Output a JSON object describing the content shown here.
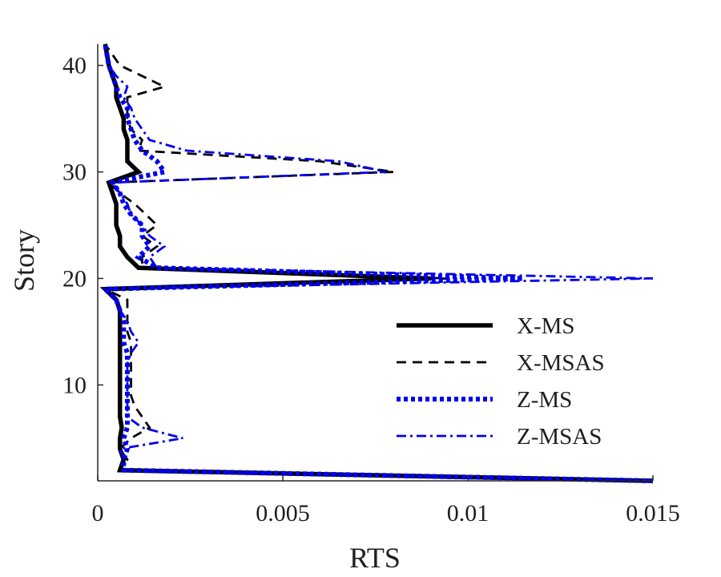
{
  "chart_data": {
    "type": "line",
    "xlabel": "RTS",
    "ylabel": "Story",
    "xlim": [
      0,
      0.015
    ],
    "ylim": [
      1,
      42
    ],
    "xticks": [
      0,
      0.005,
      0.01,
      0.015
    ],
    "xtick_labels": [
      "0",
      "0.005",
      "0.01",
      "0.015"
    ],
    "yticks": [
      10,
      20,
      30,
      40
    ],
    "ytick_labels": [
      "10",
      "20",
      "30",
      "40"
    ],
    "grid": false,
    "legend_position": "bottom-right",
    "series": [
      {
        "name": "X-MS",
        "color": "#000000",
        "style": "solid",
        "x": [
          0.015,
          0.0006,
          0.0007,
          0.0006,
          0.0006,
          0.00065,
          0.0006,
          0.0006,
          0.0006,
          0.0006,
          0.0006,
          0.0006,
          0.0006,
          0.0006,
          0.0006,
          0.0006,
          0.0006,
          0.0005,
          0.0002,
          0.009,
          0.0011,
          0.0008,
          0.0006,
          0.0006,
          0.0005,
          0.0005,
          0.0005,
          0.0004,
          0.0003,
          0.0011,
          0.0008,
          0.0008,
          0.0008,
          0.0007,
          0.0007,
          0.0006,
          0.0005,
          0.0005,
          0.0004,
          0.0003,
          0.0002
        ],
        "y": [
          1,
          2,
          3,
          4,
          5,
          6,
          7,
          8,
          9,
          10,
          11,
          12,
          13,
          14,
          15,
          16,
          17,
          18,
          19,
          20,
          21,
          22,
          23,
          24,
          25,
          26,
          27,
          28,
          29,
          30,
          31,
          32,
          33,
          34,
          35,
          36,
          37,
          38,
          39,
          40,
          42
        ]
      },
      {
        "name": "X-MSAS",
        "color": "#000000",
        "style": "dashed",
        "x": [
          0.015,
          0.0006,
          0.0008,
          0.0006,
          0.0009,
          0.0014,
          0.0012,
          0.001,
          0.0009,
          0.0009,
          0.0009,
          0.0009,
          0.0009,
          0.0009,
          0.0008,
          0.0008,
          0.0008,
          0.0008,
          0.0002,
          0.0095,
          0.0012,
          0.0012,
          0.0016,
          0.0012,
          0.0016,
          0.0013,
          0.001,
          0.0006,
          0.0003,
          0.008,
          0.006,
          0.0011,
          0.0012,
          0.0009,
          0.0008,
          0.0008,
          0.0008,
          0.0018,
          0.0012,
          0.0006,
          0.0002
        ],
        "y": [
          1,
          2,
          3,
          4,
          5,
          6,
          7,
          8,
          9,
          10,
          11,
          12,
          13,
          14,
          15,
          16,
          17,
          18,
          19,
          20,
          21,
          22,
          23,
          24,
          25,
          26,
          27,
          28,
          29,
          30,
          31,
          32,
          33,
          34,
          35,
          36,
          37,
          38,
          39,
          40,
          42
        ]
      },
      {
        "name": "Z-MS",
        "color": "#0000ee",
        "style": "dotted",
        "x": [
          0.015,
          0.0007,
          0.0007,
          0.0008,
          0.0007,
          0.0008,
          0.0008,
          0.0008,
          0.0008,
          0.0008,
          0.0008,
          0.0008,
          0.0008,
          0.0007,
          0.0007,
          0.0007,
          0.0006,
          0.0005,
          0.0002,
          0.0115,
          0.0016,
          0.0011,
          0.0014,
          0.0012,
          0.0012,
          0.0009,
          0.0007,
          0.0006,
          0.0004,
          0.0018,
          0.0016,
          0.0012,
          0.001,
          0.0009,
          0.0008,
          0.0008,
          0.0006,
          0.0005,
          0.0004,
          0.0003,
          0.0002
        ],
        "y": [
          1,
          2,
          3,
          4,
          5,
          6,
          7,
          8,
          9,
          10,
          11,
          12,
          13,
          14,
          15,
          16,
          17,
          18,
          19,
          20,
          21,
          22,
          23,
          24,
          25,
          26,
          27,
          28,
          29,
          30,
          31,
          32,
          33,
          34,
          35,
          36,
          37,
          38,
          39,
          40,
          42
        ]
      },
      {
        "name": "Z-MSAS",
        "color": "#0000ee",
        "style": "dashdot",
        "x": [
          0.015,
          0.0007,
          0.0007,
          0.0006,
          0.0023,
          0.0012,
          0.0008,
          0.0008,
          0.0008,
          0.0008,
          0.0008,
          0.0008,
          0.0009,
          0.0011,
          0.0009,
          0.0008,
          0.0006,
          0.0005,
          0.0002,
          0.015,
          0.0016,
          0.0014,
          0.0018,
          0.0014,
          0.0012,
          0.0009,
          0.0008,
          0.0006,
          0.0004,
          0.0078,
          0.0065,
          0.0024,
          0.0014,
          0.0012,
          0.001,
          0.0009,
          0.0007,
          0.0008,
          0.0005,
          0.0003,
          0.0002
        ],
        "y": [
          1,
          2,
          3,
          4,
          5,
          6,
          7,
          8,
          9,
          10,
          11,
          12,
          13,
          14,
          15,
          16,
          17,
          18,
          19,
          20,
          21,
          22,
          23,
          24,
          25,
          26,
          27,
          28,
          29,
          30,
          31,
          32,
          33,
          34,
          35,
          36,
          37,
          38,
          39,
          40,
          42
        ]
      }
    ]
  }
}
